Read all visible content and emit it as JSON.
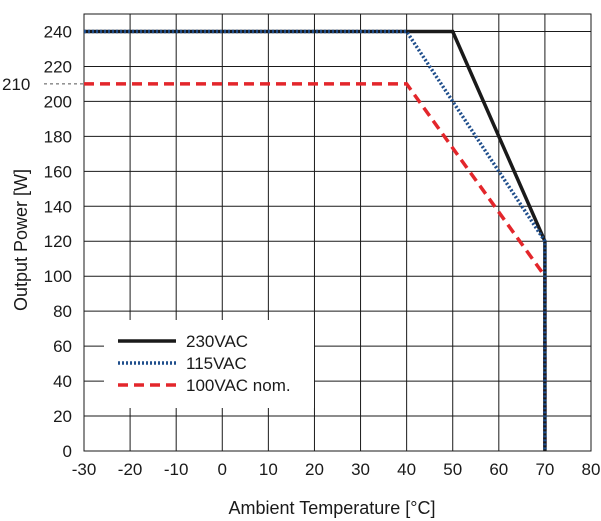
{
  "chart_data": {
    "type": "line",
    "title": "",
    "xlabel": "Ambient Temperature [°C]",
    "ylabel": "Output Power [W]",
    "xlim": [
      -30,
      80
    ],
    "ylim": [
      0,
      250
    ],
    "x_ticks": [
      -30,
      -20,
      -10,
      0,
      10,
      20,
      30,
      40,
      50,
      60,
      70,
      80
    ],
    "y_ticks": [
      0,
      20,
      40,
      60,
      80,
      100,
      120,
      140,
      160,
      180,
      200,
      220,
      240
    ],
    "grid": true,
    "legend_position": "bottom-left",
    "annotations": [
      {
        "label": "210",
        "y": 210
      }
    ],
    "series": [
      {
        "name": "230VAC",
        "color": "#1a1a1a",
        "style": "solid",
        "points": [
          [
            -30,
            240
          ],
          [
            50,
            240
          ],
          [
            70,
            120
          ],
          [
            70,
            0
          ]
        ]
      },
      {
        "name": "115VAC",
        "color": "#1f4e8c",
        "style": "dotted",
        "points": [
          [
            -30,
            240
          ],
          [
            40,
            240
          ],
          [
            70,
            120
          ],
          [
            70,
            0
          ]
        ]
      },
      {
        "name": "100VAC nom.",
        "color": "#e3262b",
        "style": "dashed",
        "points": [
          [
            -30,
            210
          ],
          [
            40,
            210
          ],
          [
            70,
            100
          ],
          [
            70,
            0
          ]
        ]
      }
    ]
  }
}
